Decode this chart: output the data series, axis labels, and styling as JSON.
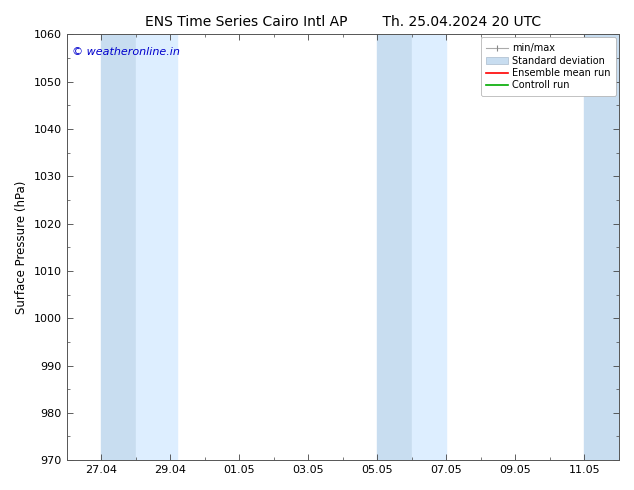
{
  "title_left": "ENS Time Series Cairo Intl AP",
  "title_right": "Th. 25.04.2024 20 UTC",
  "ylabel": "Surface Pressure (hPa)",
  "ylim": [
    970,
    1060
  ],
  "yticks": [
    970,
    980,
    990,
    1000,
    1010,
    1020,
    1030,
    1040,
    1050,
    1060
  ],
  "xtick_labels": [
    "27.04",
    "29.04",
    "01.05",
    "03.05",
    "05.05",
    "07.05",
    "09.05",
    "11.05"
  ],
  "xtick_days_from_start": [
    2,
    4,
    6,
    8,
    10,
    12,
    14,
    16
  ],
  "xlim_days": [
    1,
    17
  ],
  "watermark": "© weatheronline.in",
  "watermark_color": "#0000cc",
  "shaded_bands": [
    {
      "x_start": 2,
      "x_end": 3
    },
    {
      "x_start": 3,
      "x_end": 4.2
    },
    {
      "x_start": 10,
      "x_end": 11
    },
    {
      "x_start": 11,
      "x_end": 12
    },
    {
      "x_start": 16,
      "x_end": 17
    }
  ],
  "band_color_dark": "#c8ddf0",
  "band_color_light": "#ddeeff",
  "bg_color": "#ffffff",
  "plot_bg_color": "#ffffff",
  "title_fontsize": 10,
  "tick_fontsize": 8,
  "ylabel_fontsize": 8.5
}
